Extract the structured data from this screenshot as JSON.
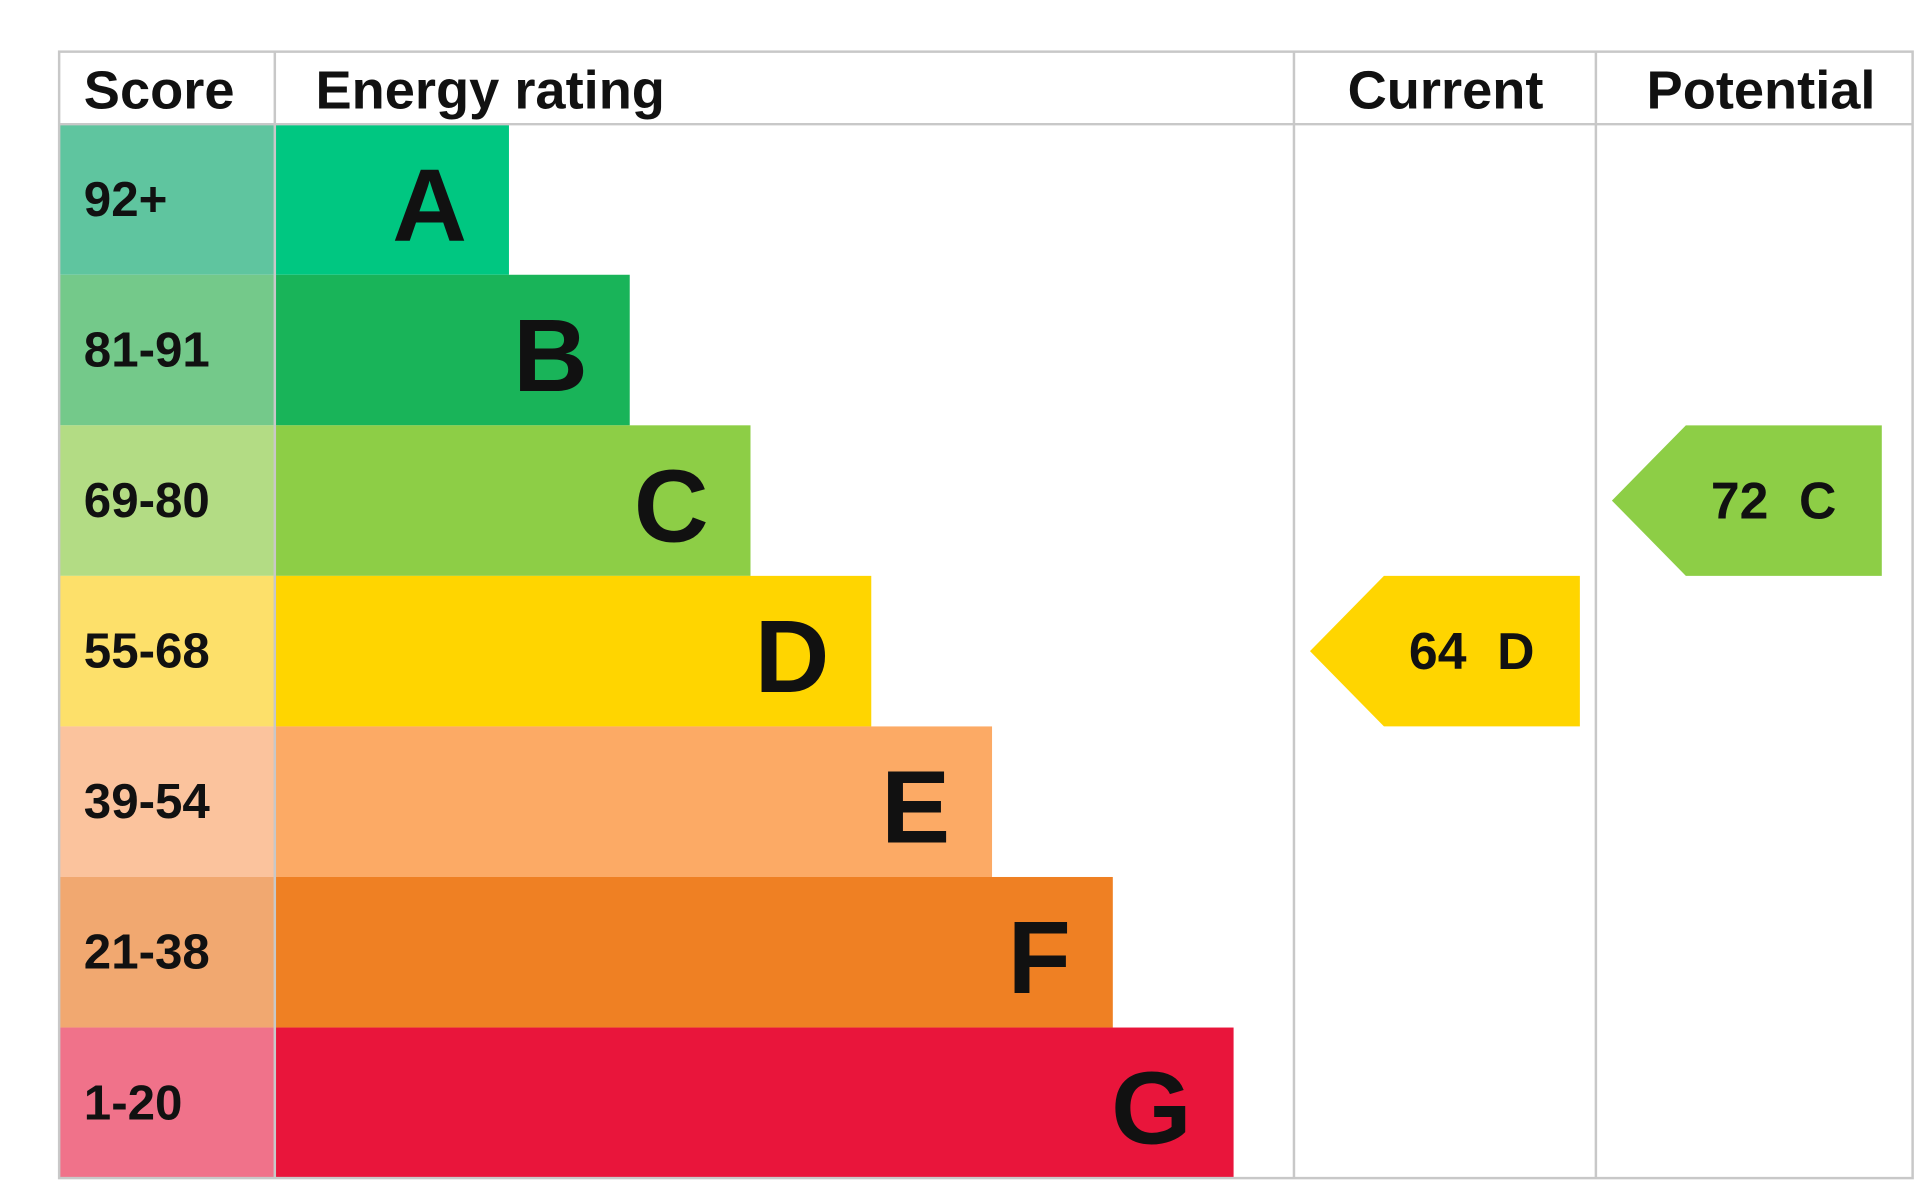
{
  "header": [
    "Score",
    "Energy rating",
    "Current",
    "Potential"
  ],
  "rows": [
    {
      "score": "92+",
      "rating": "A",
      "color": "#00c781",
      "score_color": "#5fc59f"
    },
    {
      "score": "81-91",
      "rating": "B",
      "color": "#19b459",
      "score_color": "#74c98a"
    },
    {
      "score": "69-80",
      "rating": "C",
      "color": "#8dce46",
      "score_color": "#b3dc84"
    },
    {
      "score": "55-68",
      "rating": "D",
      "color": "#ffd500",
      "score_color": "#fde06a"
    },
    {
      "score": "39-54",
      "rating": "E",
      "color": "#fcaa65",
      "score_color": "#fbc39d"
    },
    {
      "score": "21-38",
      "rating": "F",
      "color": "#ef8023",
      "score_color": "#f1a870"
    },
    {
      "score": "1-20",
      "rating": "G",
      "color": "#e9153b",
      "score_color": "#f0728a"
    }
  ],
  "current": {
    "value": 64,
    "rating": "D"
  },
  "potential": {
    "value": 72,
    "rating": "C"
  }
}
